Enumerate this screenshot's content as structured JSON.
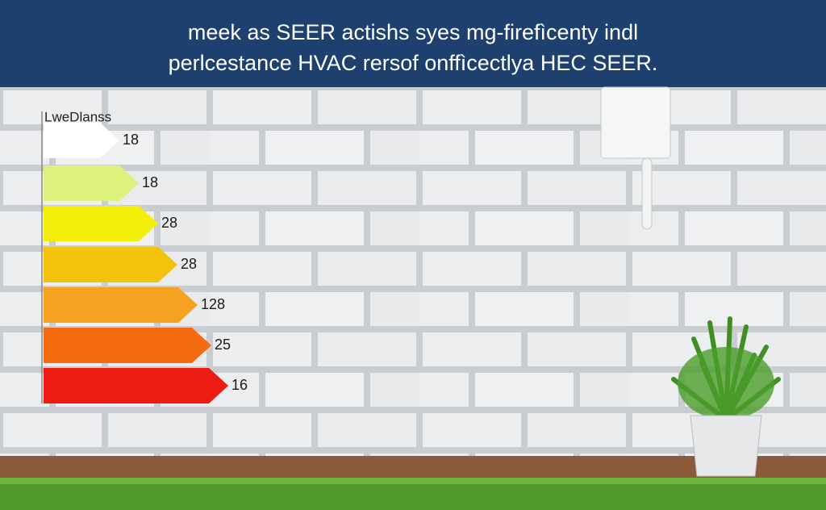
{
  "header": {
    "lines": [
      "meek as SEER actishs syes mg-firefìcenty indl",
      "perlcestance HVAC rersof onffìcectlya HEC SEER."
    ]
  },
  "chart": {
    "legend_title": "LweDlanss",
    "bar_labels": [
      "18",
      "18",
      "28",
      "28",
      "128",
      "25",
      "16"
    ]
  }
}
